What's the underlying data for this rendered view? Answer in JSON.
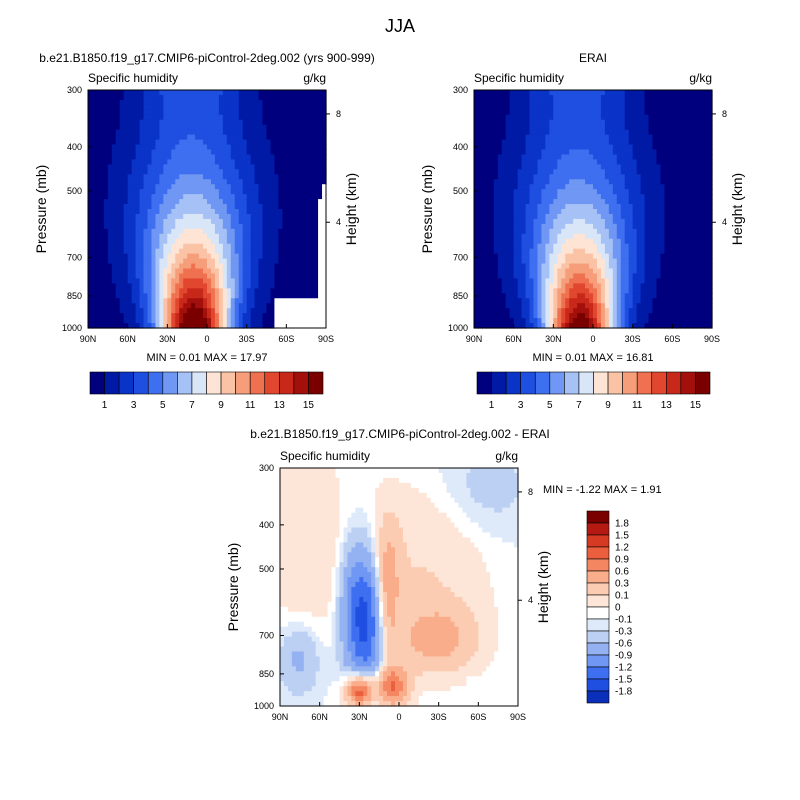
{
  "figure_title": "JJA",
  "palette_main": [
    "#00007f",
    "#001aa6",
    "#0a33c8",
    "#1f4fe0",
    "#3e6ff0",
    "#6f97f3",
    "#a6c1f5",
    "#d8e6f8",
    "#fde4d4",
    "#fbc3a5",
    "#f69d7a",
    "#ef7150",
    "#e0472e",
    "#c7281a",
    "#a3100c",
    "#7a0000"
  ],
  "palette_diff": [
    "#00007f",
    "#0a2fb8",
    "#1f4fe0",
    "#3e6ff0",
    "#6f97f3",
    "#94b2f2",
    "#bcd0f4",
    "#deeaf9",
    "#ffffff",
    "#fde6d8",
    "#fcccb2",
    "#f9ad8b",
    "#f48762",
    "#ec5f3e",
    "#d63a22",
    "#b51a12",
    "#7a0000"
  ],
  "chart_data": [
    {
      "type": "contour",
      "title": "b.e21.B1850.f19_g17.CMIP6-piControl-2deg.002 (yrs 900-999)",
      "left_string": "Specific humidity",
      "right_string": "g/kg",
      "ylabel": "Pressure (mb)",
      "y2label": "Height (km)",
      "x_ticks": [
        "90N",
        "60N",
        "30N",
        "0",
        "30S",
        "60S",
        "90S"
      ],
      "y_ticks": [
        "300",
        "400",
        "500",
        "700",
        "850",
        "1000"
      ],
      "y2_ticks": [
        "8",
        "4"
      ],
      "stats_text": "MIN =  0.01  MAX = 17.97",
      "min": 0.01,
      "max": 17.97,
      "levels": [
        1,
        2,
        3,
        4,
        5,
        6,
        7,
        8,
        9,
        10,
        11,
        12,
        13,
        14,
        15
      ],
      "colorbar_labels": [
        "1",
        "3",
        "5",
        "7",
        "9",
        "11",
        "13",
        "15"
      ],
      "xlim": [
        90,
        -90
      ],
      "ylim": [
        1000,
        300
      ]
    },
    {
      "type": "contour",
      "title": "ERAI",
      "left_string": "Specific humidity",
      "right_string": "g/kg",
      "ylabel": "Pressure (mb)",
      "y2label": "Height (km)",
      "x_ticks": [
        "90N",
        "60N",
        "30N",
        "0",
        "30S",
        "60S",
        "90S"
      ],
      "y_ticks": [
        "300",
        "400",
        "500",
        "700",
        "850",
        "1000"
      ],
      "y2_ticks": [
        "8",
        "4"
      ],
      "stats_text": "MIN =  0.01  MAX = 16.81",
      "min": 0.01,
      "max": 16.81,
      "levels": [
        1,
        2,
        3,
        4,
        5,
        6,
        7,
        8,
        9,
        10,
        11,
        12,
        13,
        14,
        15
      ],
      "colorbar_labels": [
        "1",
        "3",
        "5",
        "7",
        "9",
        "11",
        "13",
        "15"
      ],
      "xlim": [
        90,
        -90
      ],
      "ylim": [
        1000,
        300
      ]
    },
    {
      "type": "contour",
      "title": "b.e21.B1850.f19_g17.CMIP6-piControl-2deg.002 - ERAI",
      "left_string": "Specific humidity",
      "right_string": "g/kg",
      "ylabel": "Pressure (mb)",
      "y2label": "Height (km)",
      "x_ticks": [
        "90N",
        "60N",
        "30N",
        "0",
        "30S",
        "60S",
        "90S"
      ],
      "y_ticks": [
        "300",
        "400",
        "500",
        "700",
        "850",
        "1000"
      ],
      "y2_ticks": [
        "8",
        "4"
      ],
      "stats_text": "MIN = -1.22  MAX =   1.91",
      "min": -1.22,
      "max": 1.91,
      "levels": [
        -1.8,
        -1.5,
        -1.2,
        -0.9,
        -0.6,
        -0.3,
        -0.1,
        0,
        0.1,
        0.3,
        0.6,
        0.9,
        1.2,
        1.5,
        1.8
      ],
      "colorbar_labels": [
        "1.8",
        "1.5",
        "1.2",
        "0.9",
        "0.6",
        "0.3",
        "0.1",
        "0",
        "-0.1",
        "-0.3",
        "-0.6",
        "-0.9",
        "-1.2",
        "-1.5",
        "-1.8"
      ],
      "xlim": [
        90,
        -90
      ],
      "ylim": [
        1000,
        300
      ]
    }
  ]
}
